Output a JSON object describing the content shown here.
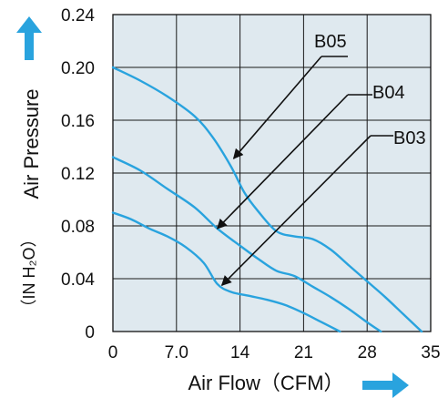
{
  "chart_data": {
    "type": "line",
    "xlabel": "Air Flow（CFM）",
    "ylabel": "Air Pressure",
    "yunit": "（IN H₂O）",
    "xlim": [
      0,
      35
    ],
    "ylim": [
      0,
      0.24
    ],
    "x_ticks": [
      "0",
      "7.0",
      "14",
      "21",
      "28",
      "35"
    ],
    "x_tick_values": [
      0,
      7,
      14,
      21,
      28,
      35
    ],
    "y_ticks": [
      "0",
      "0.04",
      "0.08",
      "0.12",
      "0.16",
      "0.20",
      "0.24"
    ],
    "y_tick_values": [
      0,
      0.04,
      0.08,
      0.12,
      0.16,
      0.2,
      0.24
    ],
    "grid": true,
    "colors": {
      "series": "#29a3de",
      "arrow": "#29a3de",
      "background": "#dfe9ef",
      "grid": "#1a1a1a"
    },
    "series": [
      {
        "name": "B05",
        "x": [
          0,
          3,
          6,
          9,
          11,
          13,
          14.5,
          16,
          18,
          20,
          22,
          24,
          26,
          28,
          30,
          32,
          34
        ],
        "y": [
          0.2,
          0.19,
          0.178,
          0.163,
          0.147,
          0.125,
          0.105,
          0.091,
          0.076,
          0.072,
          0.07,
          0.062,
          0.05,
          0.038,
          0.026,
          0.013,
          0.0
        ]
      },
      {
        "name": "B04",
        "x": [
          0,
          3,
          6,
          9,
          11.5,
          14,
          16,
          18,
          20,
          22,
          24,
          26,
          28,
          29.5
        ],
        "y": [
          0.132,
          0.122,
          0.108,
          0.094,
          0.078,
          0.065,
          0.055,
          0.046,
          0.042,
          0.034,
          0.026,
          0.017,
          0.007,
          0.0
        ]
      },
      {
        "name": "B03",
        "x": [
          0,
          2,
          4,
          6,
          8,
          10,
          11.5,
          13,
          15,
          17,
          19,
          21,
          23,
          25
        ],
        "y": [
          0.09,
          0.085,
          0.078,
          0.072,
          0.064,
          0.052,
          0.036,
          0.03,
          0.027,
          0.024,
          0.02,
          0.014,
          0.007,
          0.0
        ]
      }
    ],
    "annotations": [
      {
        "series": "B05",
        "text": "B05",
        "arrow_to_x": 13.3,
        "arrow_to_y": 0.131
      },
      {
        "series": "B04",
        "text": "B04",
        "arrow_to_x": 11.5,
        "arrow_to_y": 0.078
      },
      {
        "series": "B03",
        "text": "B03",
        "arrow_to_x": 12.0,
        "arrow_to_y": 0.035
      }
    ]
  }
}
